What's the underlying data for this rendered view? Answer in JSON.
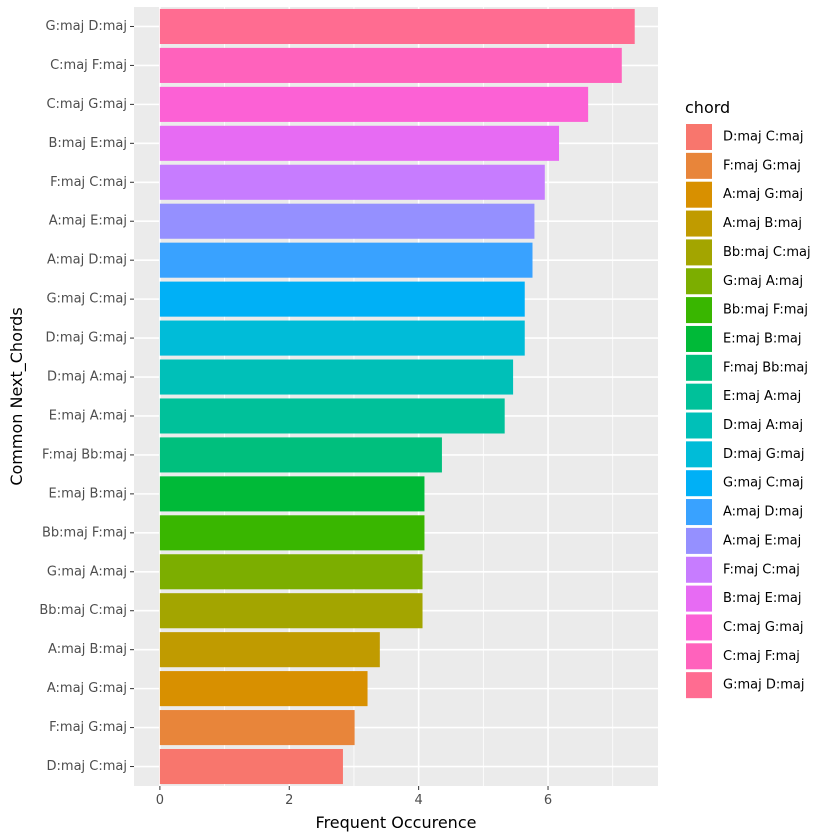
{
  "chart_data": {
    "type": "bar",
    "orientation": "horizontal",
    "xlabel": "Frequent Occurence",
    "ylabel": "Common Next_Chords",
    "xlim": [
      -0.4,
      7.7
    ],
    "xticks": [
      0,
      2,
      4,
      6
    ],
    "grid": true,
    "legend": {
      "title": "chord",
      "position": "right"
    },
    "categories": [
      "G:maj D:maj",
      "C:maj F:maj",
      "C:maj G:maj",
      "B:maj E:maj",
      "F:maj C:maj",
      "A:maj E:maj",
      "A:maj D:maj",
      "G:maj C:maj",
      "D:maj G:maj",
      "D:maj A:maj",
      "E:maj A:maj",
      "F:maj Bb:maj",
      "E:maj B:maj",
      "Bb:maj F:maj",
      "G:maj A:maj",
      "Bb:maj C:maj",
      "A:maj B:maj",
      "A:maj G:maj",
      "F:maj G:maj",
      "D:maj C:maj"
    ],
    "values": [
      7.34,
      7.14,
      6.62,
      6.17,
      5.95,
      5.79,
      5.76,
      5.64,
      5.64,
      5.46,
      5.33,
      4.36,
      4.09,
      4.09,
      4.06,
      4.06,
      3.4,
      3.21,
      3.01,
      2.83
    ],
    "colors": [
      "#FF6C91",
      "#FF62BC",
      "#FC61D5",
      "#E76BF3",
      "#C77CFF",
      "#9590FF",
      "#39A2FF",
      "#00B0F6",
      "#00BCD8",
      "#00C0B8",
      "#00C19A",
      "#00BF7D",
      "#00BA38",
      "#39B600",
      "#7CAE00",
      "#A3A500",
      "#C09B00",
      "#D89000",
      "#E8853A",
      "#F8766D"
    ],
    "legend_entries": [
      "D:maj C:maj",
      "F:maj G:maj",
      "A:maj G:maj",
      "A:maj B:maj",
      "Bb:maj C:maj",
      "G:maj A:maj",
      "Bb:maj F:maj",
      "E:maj B:maj",
      "F:maj Bb:maj",
      "E:maj A:maj",
      "D:maj A:maj",
      "D:maj G:maj",
      "G:maj C:maj",
      "A:maj D:maj",
      "A:maj E:maj",
      "F:maj C:maj",
      "B:maj E:maj",
      "C:maj G:maj",
      "C:maj F:maj",
      "G:maj D:maj"
    ],
    "legend_colors": [
      "#F8766D",
      "#E8853A",
      "#D89000",
      "#C09B00",
      "#A3A500",
      "#7CAE00",
      "#39B600",
      "#00BA38",
      "#00BF7D",
      "#00C19A",
      "#00C0B8",
      "#00BCD8",
      "#00B0F6",
      "#39A2FF",
      "#9590FF",
      "#C77CFF",
      "#E76BF3",
      "#FC61D5",
      "#FF62BC",
      "#FF6C91"
    ],
    "panel_background": "#EBEBEB"
  }
}
